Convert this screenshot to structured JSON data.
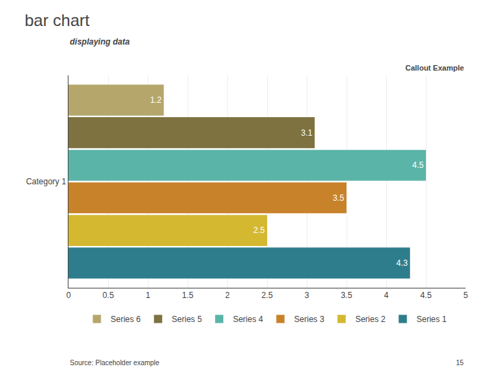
{
  "chart_data": {
    "type": "bar",
    "orientation": "horizontal",
    "title": "bar chart",
    "subtitle": "displaying data",
    "categories": [
      "Category 1"
    ],
    "series": [
      {
        "name": "Series 6",
        "color": "#b5a66b",
        "values": [
          1.2
        ]
      },
      {
        "name": "Series 5",
        "color": "#7d7240",
        "values": [
          3.1
        ]
      },
      {
        "name": "Series 4",
        "color": "#5ab5a8",
        "values": [
          4.5
        ]
      },
      {
        "name": "Series 3",
        "color": "#c8822a",
        "values": [
          3.5
        ]
      },
      {
        "name": "Series 2",
        "color": "#d4b830",
        "values": [
          2.5
        ]
      },
      {
        "name": "Series 1",
        "color": "#2e7d8c",
        "values": [
          4.3
        ]
      }
    ],
    "xlim": [
      0,
      5
    ],
    "xticks": [
      0,
      0.5,
      1,
      1.5,
      2,
      2.5,
      3,
      3.5,
      4,
      4.5,
      5
    ],
    "grid": true,
    "data_labels": true,
    "legend": "bottom",
    "callout": "Callout Example",
    "source": "Source: Placeholder example",
    "page_number": "15"
  }
}
